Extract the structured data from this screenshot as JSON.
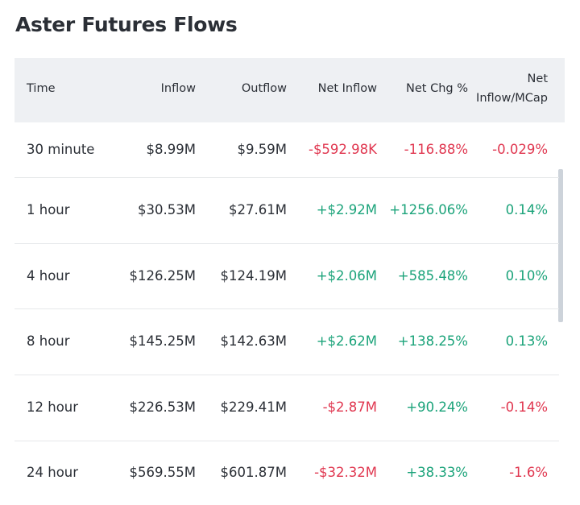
{
  "header": {
    "title": "Aster Futures Flows"
  },
  "table": {
    "columns": [
      "Time",
      "Inflow",
      "Outflow",
      "Net Inflow",
      "Net Chg %",
      "Net Inflow/MCap"
    ],
    "rows": [
      [
        "30 minute",
        "$8.99M",
        "$9.59M",
        "-$592.98K",
        "-116.88%",
        "-0.029%"
      ],
      [
        "1 hour",
        "$30.53M",
        "$27.61M",
        "+$2.92M",
        "+1256.06%",
        "0.14%"
      ],
      [
        "4 hour",
        "$126.25M",
        "$124.19M",
        "+$2.06M",
        "+585.48%",
        "0.10%"
      ],
      [
        "8 hour",
        "$145.25M",
        "$142.63M",
        "+$2.62M",
        "+138.25%",
        "0.13%"
      ],
      [
        "12 hour",
        "$226.53M",
        "$229.41M",
        "-$2.87M",
        "+90.24%",
        "-0.14%"
      ],
      [
        "24 hour",
        "$569.55M",
        "$601.87M",
        "-$32.32M",
        "+38.33%",
        "-1.6%"
      ]
    ]
  },
  "colors": {
    "positive": "#1ba37a",
    "negative": "#e0364f",
    "text": "#2b2f36"
  }
}
